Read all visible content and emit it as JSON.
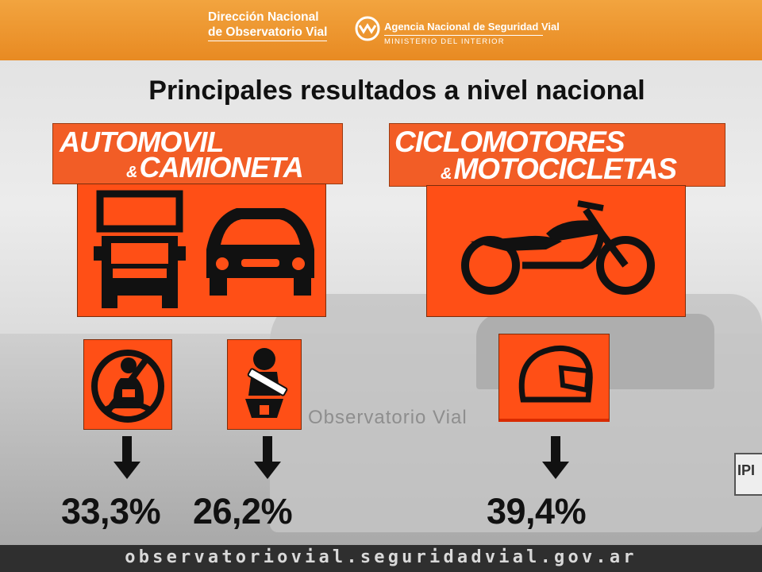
{
  "header": {
    "left_brand_line1": "Dirección Nacional",
    "left_brand_line2": "de Observatorio Vial",
    "agency": "Agencia Nacional de Seguridad Vial",
    "ministry": "Ministerio del Interior"
  },
  "title": "Principales resultados a nivel nacional",
  "categories": [
    {
      "line1": "AUTOMOVIL",
      "amp": "&",
      "line2": "CAMIONETA"
    },
    {
      "line1": "CICLOMOTORES",
      "amp": "&",
      "line2": "MOTOCICLETAS"
    }
  ],
  "results": [
    {
      "icon": "no-seatbelt-icon",
      "value": "33,3%"
    },
    {
      "icon": "child-seat-icon",
      "value": "26,2%"
    },
    {
      "icon": "helmet-icon",
      "value": "39,4%"
    }
  ],
  "background": {
    "truck_text": "Observatorio Vial",
    "plate": "IPI"
  },
  "footer": {
    "url": "observatoriovial.seguridadvial.gov.ar"
  },
  "colors": {
    "header": "#ee9530",
    "accent": "#ff4f16",
    "footer": "#2f2f2f"
  }
}
